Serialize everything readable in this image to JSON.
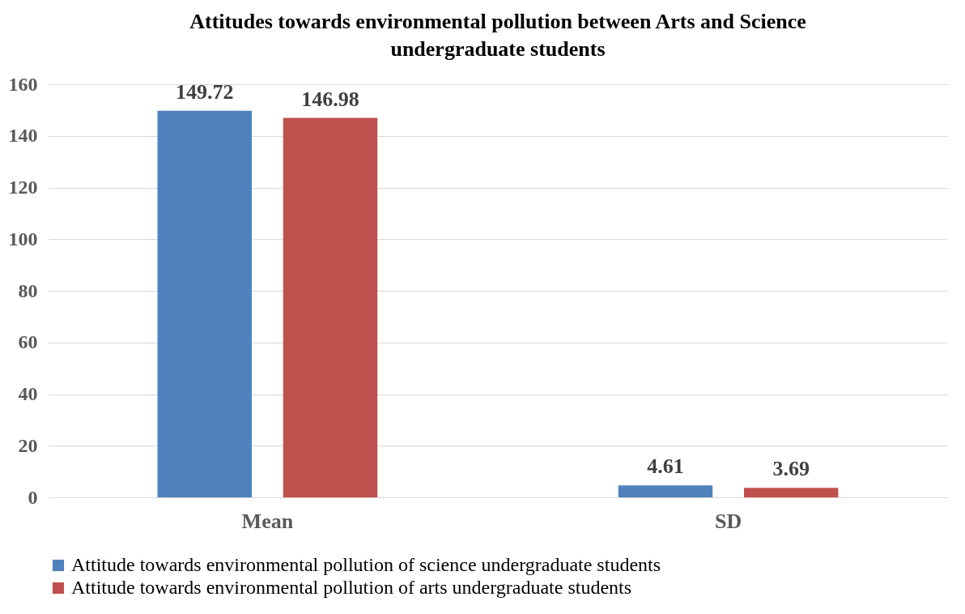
{
  "chart_data": {
    "type": "bar",
    "title": "Attitudes towards environmental pollution between Arts and Science undergraduate students",
    "categories": [
      "Mean",
      "SD"
    ],
    "series": [
      {
        "name": "Attitude towards environmental pollution of science undergraduate students",
        "color": "#4f81bd",
        "values": [
          149.72,
          4.61
        ]
      },
      {
        "name": "Attitude towards environmental pollution of arts undergraduate students",
        "color": "#c0504d",
        "values": [
          146.98,
          3.69
        ]
      }
    ],
    "ylim": [
      0,
      160
    ],
    "yticks": [
      0,
      20,
      40,
      60,
      80,
      100,
      120,
      140,
      160
    ],
    "grid": "y",
    "legend": "bottom",
    "data_labels": true
  }
}
